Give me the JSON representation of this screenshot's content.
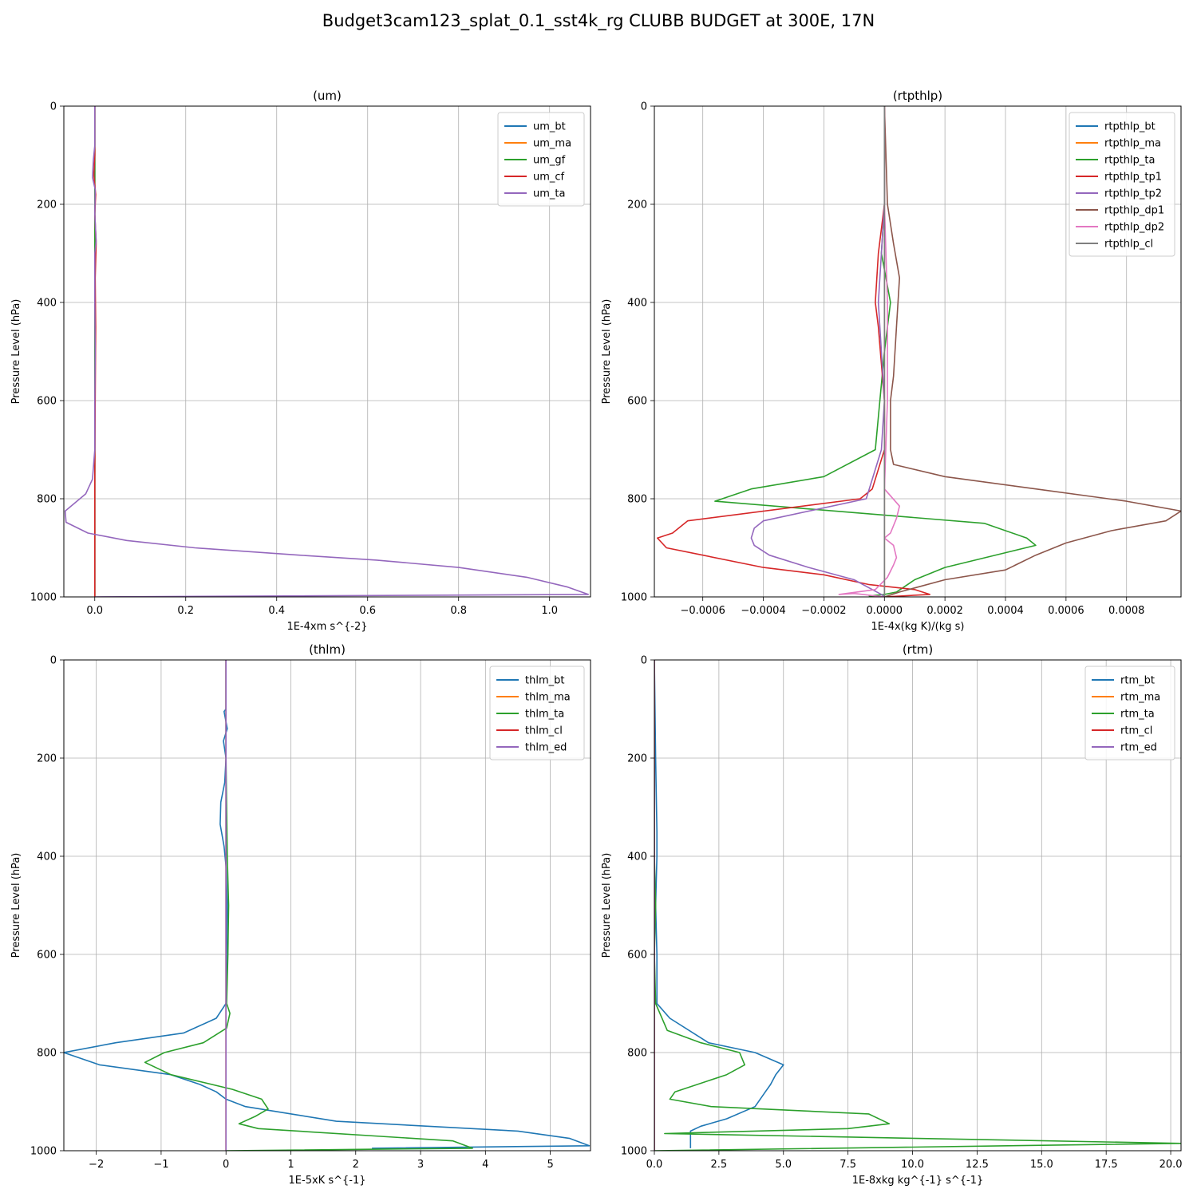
{
  "figure": {
    "suptitle": "Budget3cam123_splat_0.1_sst4k_rg CLUBB BUDGET at 300E, 17N"
  },
  "chart_data": [
    {
      "type": "line",
      "title": "(um)",
      "xlabel": "1E-4xm s^{-2}",
      "ylabel": "Pressure Level (hPa)",
      "xlim": [
        -0.068,
        1.09
      ],
      "ylim": [
        1000,
        0
      ],
      "xticks": [
        0.0,
        0.2,
        0.4,
        0.6,
        0.8,
        1.0
      ],
      "xtick_labels": [
        "0.0",
        "0.2",
        "0.4",
        "0.6",
        "0.8",
        "1.0"
      ],
      "yticks": [
        0,
        200,
        400,
        600,
        800,
        1000
      ],
      "ytick_labels": [
        "0",
        "200",
        "400",
        "600",
        "800",
        "1000"
      ],
      "grid": true,
      "legend": "upper right",
      "series": [
        {
          "name": "um_bt",
          "color": "#1f77b4",
          "x": [
            0,
            0,
            0,
            0,
            0
          ],
          "y": [
            0,
            200,
            500,
            800,
            1000
          ]
        },
        {
          "name": "um_ma",
          "color": "#ff7f0e",
          "x": [
            0,
            0,
            0,
            0,
            0
          ],
          "y": [
            0,
            200,
            500,
            800,
            1000
          ]
        },
        {
          "name": "um_gf",
          "color": "#2ca02c",
          "x": [
            0,
            0,
            0,
            0,
            0
          ],
          "y": [
            0,
            200,
            500,
            800,
            1000
          ]
        },
        {
          "name": "um_cf",
          "color": "#d62728",
          "x": [
            0,
            0,
            -0.002,
            0.002,
            0,
            0.003,
            0.001,
            0.002,
            0.001,
            0,
            0
          ],
          "y": [
            0,
            100,
            140,
            180,
            220,
            280,
            350,
            450,
            600,
            750,
            1000
          ]
        },
        {
          "name": "um_ta",
          "color": "#9467bd",
          "x": [
            0,
            0,
            -0.003,
            -0.005,
            0.001,
            0,
            0.003,
            0,
            0,
            0.001,
            0,
            0,
            -0.005,
            -0.02,
            -0.065,
            -0.063,
            -0.015,
            0.07,
            0.22,
            0.45,
            0.62,
            0.8,
            0.95,
            1.04,
            1.085,
            0
          ],
          "y": [
            0,
            80,
            110,
            145,
            170,
            220,
            275,
            300,
            400,
            500,
            600,
            700,
            760,
            790,
            825,
            848,
            870,
            885,
            900,
            915,
            925,
            940,
            960,
            980,
            995,
            1000
          ]
        }
      ]
    },
    {
      "type": "line",
      "title": "(rtpthlp)",
      "xlabel": "1E-4x(kg K)/(kg s)",
      "ylabel": "Pressure Level (hPa)",
      "xlim": [
        -0.00076,
        0.00098
      ],
      "ylim": [
        1000,
        0
      ],
      "xticks": [
        -0.0006,
        -0.0004,
        -0.0002,
        0.0,
        0.0002,
        0.0004,
        0.0006,
        0.0008
      ],
      "xtick_labels": [
        "−0.0006",
        "−0.0004",
        "−0.0002",
        "0.0000",
        "0.0002",
        "0.0004",
        "0.0006",
        "0.0008"
      ],
      "yticks": [
        0,
        200,
        400,
        600,
        800,
        1000
      ],
      "ytick_labels": [
        "0",
        "200",
        "400",
        "600",
        "800",
        "1000"
      ],
      "grid": true,
      "legend": "upper right",
      "series": [
        {
          "name": "rtpthlp_bt",
          "color": "#1f77b4",
          "x": [
            0,
            0,
            0,
            0,
            0
          ],
          "y": [
            0,
            200,
            500,
            800,
            1000
          ]
        },
        {
          "name": "rtpthlp_ma",
          "color": "#ff7f0e",
          "x": [
            0,
            0,
            0,
            0,
            0
          ],
          "y": [
            0,
            200,
            500,
            800,
            1000
          ]
        },
        {
          "name": "rtpthlp_ta",
          "color": "#2ca02c",
          "x": [
            0,
            0,
            -1e-05,
            2e-05,
            0,
            -3e-05,
            -0.0002,
            -0.00044,
            -0.00056,
            0.00033,
            0.00047,
            0.0005,
            0.0004,
            0.0002,
            0.0001,
            4e-05,
            0,
            -5e-05,
            0
          ],
          "y": [
            0,
            200,
            300,
            400,
            500,
            700,
            755,
            780,
            805,
            850,
            880,
            895,
            910,
            940,
            965,
            990,
            995,
            998,
            1000
          ]
        },
        {
          "name": "rtpthlp_tp1",
          "color": "#d62728",
          "x": [
            0,
            0,
            -2e-05,
            -3e-05,
            -2e-05,
            0,
            0,
            -4e-05,
            -8e-05,
            -0.00065,
            -0.0007,
            -0.00075,
            -0.00072,
            -0.0006,
            -0.0004,
            -0.0002,
            -5e-05,
            0.0001,
            0.00015,
            0
          ],
          "y": [
            0,
            200,
            300,
            400,
            450,
            600,
            700,
            780,
            800,
            845,
            870,
            880,
            900,
            915,
            940,
            955,
            975,
            985,
            995,
            1000
          ]
        },
        {
          "name": "rtpthlp_tp2",
          "color": "#9467bd",
          "x": [
            0,
            0,
            -1e-05,
            -2e-05,
            -1e-05,
            0,
            -1e-05,
            -6e-05,
            -0.0004,
            -0.00043,
            -0.00044,
            -0.00043,
            -0.00038,
            -0.00025,
            -0.0001,
            -4e-05,
            -1e-05,
            0
          ],
          "y": [
            0,
            200,
            300,
            400,
            500,
            600,
            700,
            800,
            845,
            860,
            880,
            895,
            915,
            940,
            965,
            985,
            995,
            1000
          ]
        },
        {
          "name": "rtpthlp_dp1",
          "color": "#8c564b",
          "x": [
            0,
            1e-05,
            3e-05,
            5e-05,
            4e-05,
            3e-05,
            2e-05,
            2e-05,
            2e-05,
            3e-05,
            0.0002,
            0.0005,
            0.0008,
            0.00098,
            0.00093,
            0.00075,
            0.0006,
            0.0005,
            0.0004,
            0.0002,
            5e-05,
            0
          ],
          "y": [
            0,
            200,
            280,
            350,
            450,
            550,
            600,
            660,
            700,
            730,
            755,
            780,
            805,
            825,
            845,
            865,
            890,
            915,
            945,
            965,
            990,
            1000
          ]
        },
        {
          "name": "rtpthlp_dp2",
          "color": "#e377c2",
          "x": [
            0,
            0,
            1e-05,
            1e-05,
            0,
            5e-05,
            4e-05,
            2e-05,
            0,
            3e-05,
            4e-05,
            3e-05,
            1e-05,
            -3e-05,
            -0.00015,
            -0.0001,
            0
          ],
          "y": [
            0,
            200,
            400,
            600,
            780,
            815,
            840,
            870,
            880,
            895,
            920,
            935,
            960,
            985,
            995,
            993,
            1000
          ]
        },
        {
          "name": "rtpthlp_cl",
          "color": "#7f7f7f",
          "x": [
            0,
            0,
            0,
            0,
            0
          ],
          "y": [
            0,
            200,
            500,
            800,
            1000
          ]
        }
      ]
    },
    {
      "type": "line",
      "title": "(thlm)",
      "xlabel": "1E-5xK s^{-1}",
      "ylabel": "Pressure Level (hPa)",
      "xlim": [
        -2.5,
        5.62
      ],
      "ylim": [
        1000,
        0
      ],
      "xticks": [
        -2,
        -1,
        0,
        1,
        2,
        3,
        4,
        5
      ],
      "xtick_labels": [
        "−2",
        "−1",
        "0",
        "1",
        "2",
        "3",
        "4",
        "5"
      ],
      "yticks": [
        0,
        200,
        400,
        600,
        800,
        1000
      ],
      "ytick_labels": [
        "0",
        "200",
        "400",
        "600",
        "800",
        "1000"
      ],
      "grid": true,
      "legend": "upper right",
      "series": [
        {
          "name": "thlm_bt",
          "color": "#1f77b4",
          "x": [
            0,
            0,
            -0.03,
            0.02,
            -0.04,
            0,
            -0.02,
            -0.08,
            -0.09,
            -0.03,
            0,
            0.02,
            0.01,
            0,
            -0.15,
            -0.65,
            -1.7,
            -2.5,
            -1.95,
            -0.85,
            -0.4,
            -0.15,
            0,
            0.3,
            1.7,
            4.5,
            5.3,
            5.6,
            2.25
          ],
          "y": [
            0,
            100,
            105,
            140,
            165,
            200,
            250,
            290,
            335,
            380,
            420,
            500,
            600,
            700,
            730,
            760,
            780,
            800,
            825,
            845,
            865,
            880,
            895,
            910,
            940,
            960,
            975,
            990,
            995
          ]
        },
        {
          "name": "thlm_ma",
          "color": "#ff7f0e",
          "x": [
            0,
            0,
            0,
            0,
            0
          ],
          "y": [
            0,
            200,
            500,
            800,
            1000
          ]
        },
        {
          "name": "thlm_ta",
          "color": "#2ca02c",
          "x": [
            0,
            0,
            0.02,
            0.04,
            0.03,
            0.01,
            0.06,
            0.01,
            -0.35,
            -0.95,
            -1.25,
            -0.85,
            0.1,
            0.55,
            0.65,
            0.45,
            0.2,
            0.5,
            3.5,
            3.8,
            0
          ],
          "y": [
            0,
            200,
            400,
            500,
            600,
            700,
            720,
            750,
            780,
            800,
            820,
            845,
            875,
            895,
            915,
            930,
            945,
            955,
            980,
            995,
            1000
          ]
        },
        {
          "name": "thlm_cl",
          "color": "#d62728",
          "x": [
            0,
            0,
            0,
            0,
            0
          ],
          "y": [
            0,
            200,
            500,
            800,
            1000
          ]
        },
        {
          "name": "thlm_ed",
          "color": "#9467bd",
          "x": [
            0,
            0,
            0,
            0,
            0
          ],
          "y": [
            0,
            200,
            500,
            800,
            1000
          ]
        }
      ]
    },
    {
      "type": "line",
      "title": "(rtm)",
      "xlabel": "1E-8xkg kg^{-1} s^{-1}",
      "ylabel": "Pressure Level (hPa)",
      "xlim": [
        0.0,
        20.4
      ],
      "ylim": [
        1000,
        0
      ],
      "xticks": [
        0.0,
        2.5,
        5.0,
        7.5,
        10.0,
        12.5,
        15.0,
        17.5,
        20.0
      ],
      "xtick_labels": [
        "0.0",
        "2.5",
        "5.0",
        "7.5",
        "10.0",
        "12.5",
        "15.0",
        "17.5",
        "20.0"
      ],
      "yticks": [
        0,
        200,
        400,
        600,
        800,
        1000
      ],
      "ytick_labels": [
        "0",
        "200",
        "400",
        "600",
        "800",
        "1000"
      ],
      "grid": true,
      "legend": "upper right",
      "series": [
        {
          "name": "rtm_bt",
          "color": "#1f77b4",
          "x": [
            0,
            0.05,
            0.1,
            0.1,
            0.05,
            0.1,
            0.1,
            0.6,
            2.1,
            3.9,
            5.0,
            4.7,
            4.5,
            4.3,
            3.9,
            2.8,
            1.8,
            1.4,
            1.4
          ],
          "y": [
            0,
            200,
            350,
            400,
            500,
            600,
            700,
            730,
            780,
            800,
            825,
            845,
            865,
            880,
            910,
            935,
            950,
            960,
            995
          ]
        },
        {
          "name": "rtm_ma",
          "color": "#ff7f0e",
          "x": [
            0,
            0,
            0,
            0,
            0
          ],
          "y": [
            0,
            200,
            500,
            800,
            1000
          ]
        },
        {
          "name": "rtm_ta",
          "color": "#2ca02c",
          "x": [
            0,
            0,
            0,
            0.05,
            0,
            0.05,
            0.5,
            1.8,
            3.3,
            3.5,
            2.8,
            0.8,
            0.6,
            2.2,
            8.3,
            9.1,
            7.5,
            0.4,
            20.4,
            0
          ],
          "y": [
            0,
            200,
            400,
            500,
            600,
            700,
            755,
            780,
            800,
            825,
            845,
            880,
            895,
            910,
            925,
            945,
            955,
            965,
            985,
            1000
          ]
        },
        {
          "name": "rtm_cl",
          "color": "#d62728",
          "x": [
            0,
            0,
            0,
            0,
            0
          ],
          "y": [
            0,
            200,
            500,
            800,
            1000
          ]
        },
        {
          "name": "rtm_ed",
          "color": "#9467bd",
          "x": [
            0,
            0,
            0,
            0,
            0
          ],
          "y": [
            0,
            200,
            500,
            800,
            1000
          ]
        }
      ]
    }
  ]
}
